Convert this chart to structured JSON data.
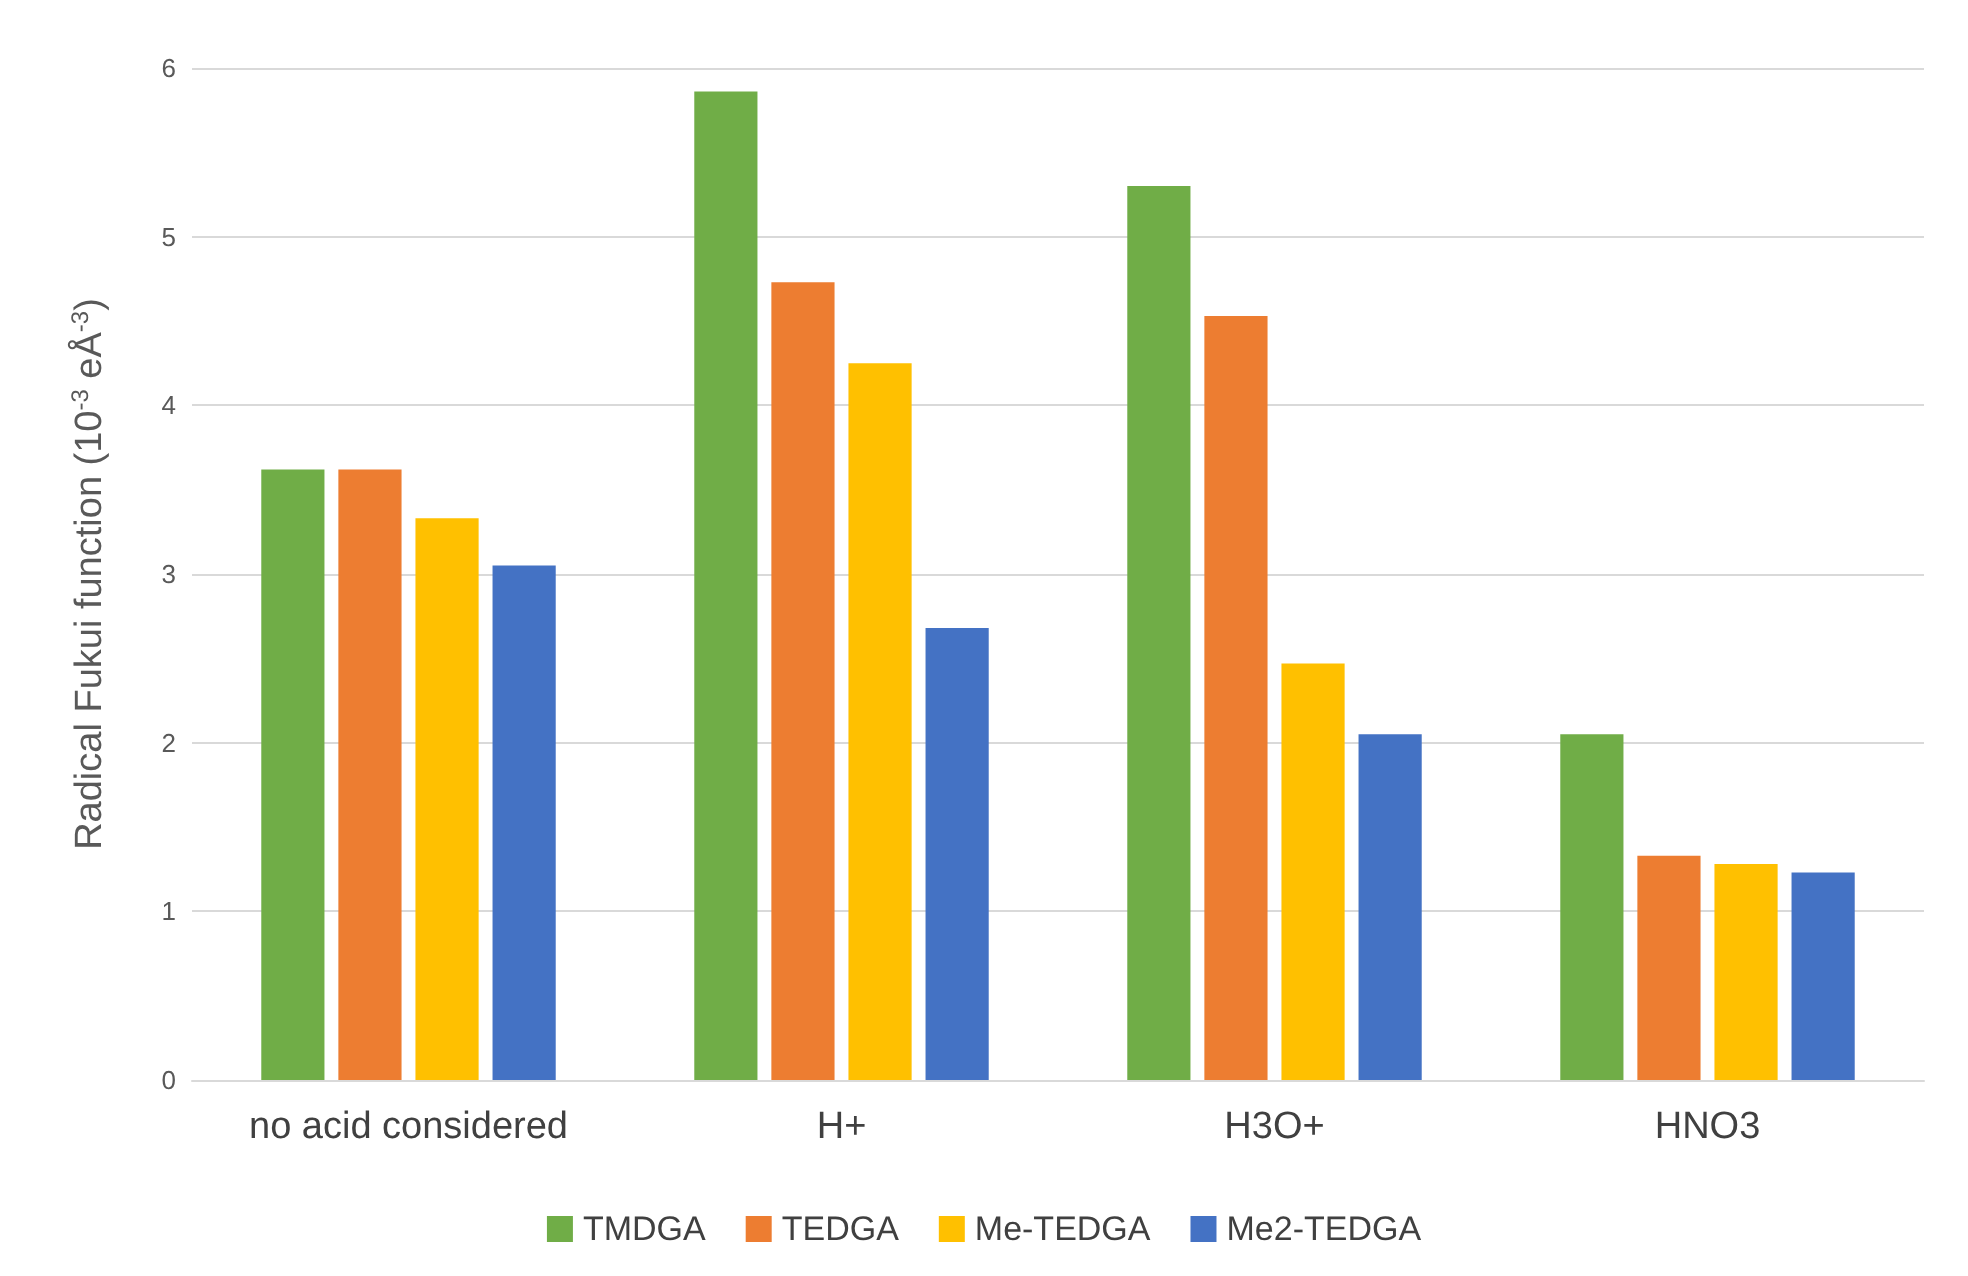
{
  "chart_data": {
    "type": "bar",
    "ylabel": "Radical Fukui function (10$^{-3}$ eÅ$^{-3}$)",
    "categories": [
      "no acid considered",
      "H+",
      "H3O+",
      "HNO3"
    ],
    "series": [
      {
        "name": "TMDGA",
        "color": "#70ad47",
        "values": [
          3.62,
          5.86,
          5.3,
          2.05
        ]
      },
      {
        "name": "TEDGA",
        "color": "#ed7d31",
        "values": [
          3.62,
          4.73,
          4.53,
          1.33
        ]
      },
      {
        "name": "Me-TEDGA",
        "color": "#ffc000",
        "values": [
          3.33,
          4.25,
          2.47,
          1.28
        ]
      },
      {
        "name": "Me2-TEDGA",
        "color": "#4472c4",
        "values": [
          3.05,
          2.68,
          2.05,
          1.23
        ]
      }
    ],
    "ylim": [
      0,
      6
    ],
    "yticks": [
      0,
      1,
      2,
      3,
      4,
      5,
      6
    ],
    "grid": "y",
    "legend": "bottom"
  }
}
